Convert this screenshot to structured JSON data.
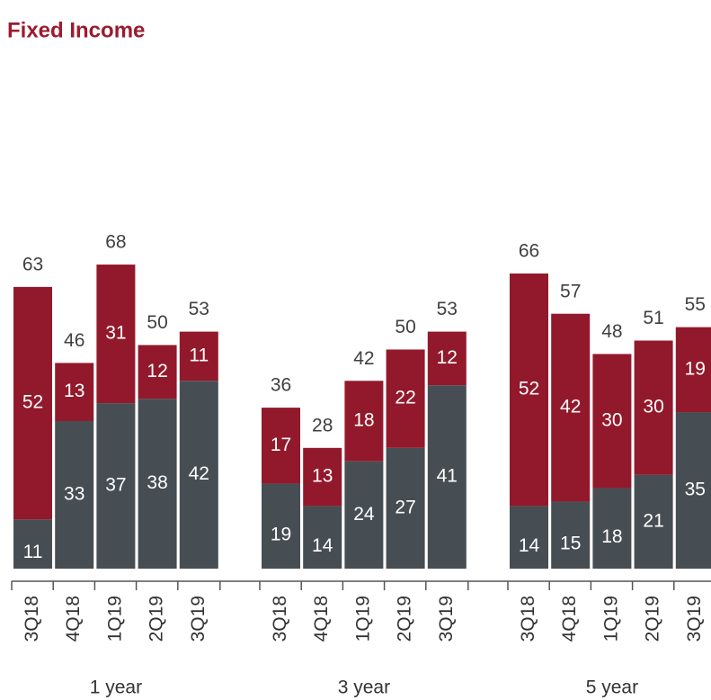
{
  "chart_data": {
    "type": "stacked-bar",
    "title": "Fixed Income",
    "groups": [
      "1 year",
      "3 year",
      "5 year"
    ],
    "categories": [
      "3Q18",
      "4Q18",
      "1Q19",
      "2Q19",
      "3Q19",
      "3Q18",
      "4Q18",
      "1Q19",
      "2Q19",
      "3Q19",
      "3Q18",
      "4Q18",
      "1Q19",
      "2Q19",
      "3Q19"
    ],
    "series": [
      {
        "color": "#474e53",
        "values": [
          11,
          33,
          37,
          38,
          42,
          19,
          14,
          24,
          27,
          41,
          14,
          15,
          18,
          21,
          35
        ]
      },
      {
        "color": "#92192b",
        "values": [
          52,
          13,
          31,
          12,
          11,
          17,
          13,
          18,
          22,
          12,
          52,
          42,
          30,
          30,
          19
        ]
      }
    ],
    "totals": [
      63,
      46,
      68,
      50,
      53,
      36,
      28,
      42,
      50,
      53,
      66,
      57,
      48,
      51,
      55
    ]
  }
}
